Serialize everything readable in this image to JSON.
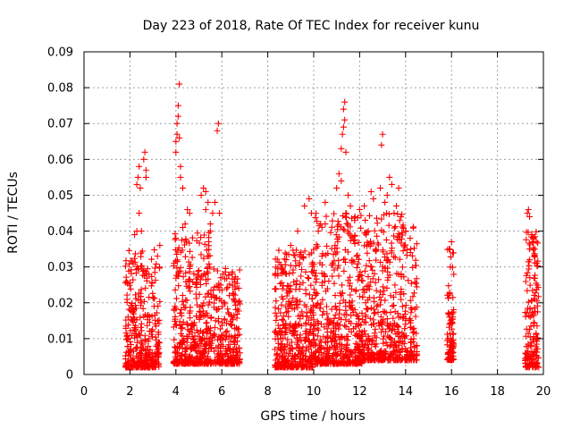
{
  "chart_data": {
    "type": "scatter",
    "title": "Day 223 of 2018, Rate Of TEC Index for receiver kunu",
    "xlabel": "GPS time / hours",
    "ylabel": "ROTI / TECUs",
    "xlim": [
      0,
      20
    ],
    "ylim": [
      0,
      0.09
    ],
    "x_ticks": [
      "0",
      "2",
      "4",
      "6",
      "8",
      "10",
      "12",
      "14",
      "16",
      "18",
      "20"
    ],
    "y_ticks": [
      "0",
      "0.01",
      "0.02",
      "0.03",
      "0.04",
      "0.05",
      "0.06",
      "0.07",
      "0.08",
      "0.09"
    ],
    "grid": true,
    "marker": "+",
    "color": "#ff0000",
    "clusters": [
      {
        "x_range": [
          1.8,
          3.3
        ],
        "y_range": [
          0.002,
          0.035
        ],
        "count": 380,
        "skew": 2.6
      },
      {
        "x_range": [
          3.9,
          5.5
        ],
        "y_range": [
          0.003,
          0.04
        ],
        "count": 400,
        "skew": 2.4
      },
      {
        "x_range": [
          5.5,
          6.8
        ],
        "y_range": [
          0.003,
          0.03
        ],
        "count": 250,
        "skew": 2.5
      },
      {
        "x_range": [
          8.3,
          10.0
        ],
        "y_range": [
          0.002,
          0.035
        ],
        "count": 420,
        "skew": 2.4
      },
      {
        "x_range": [
          10.0,
          12.1
        ],
        "y_range": [
          0.003,
          0.045
        ],
        "count": 500,
        "skew": 2.5
      },
      {
        "x_range": [
          12.1,
          14.5
        ],
        "y_range": [
          0.004,
          0.045
        ],
        "count": 500,
        "skew": 2.4
      },
      {
        "x_range": [
          15.8,
          16.1
        ],
        "y_range": [
          0.004,
          0.035
        ],
        "count": 90,
        "skew": 2.2
      },
      {
        "x_range": [
          19.2,
          19.8
        ],
        "y_range": [
          0.002,
          0.04
        ],
        "count": 160,
        "skew": 2.3
      }
    ],
    "points": [
      [
        2.3,
        0.053
      ],
      [
        2.35,
        0.055
      ],
      [
        2.4,
        0.058
      ],
      [
        2.4,
        0.045
      ],
      [
        2.45,
        0.052
      ],
      [
        2.6,
        0.06
      ],
      [
        2.65,
        0.062
      ],
      [
        2.7,
        0.057
      ],
      [
        2.7,
        0.055
      ],
      [
        2.5,
        0.04
      ],
      [
        2.2,
        0.039
      ],
      [
        2.3,
        0.04
      ],
      [
        3.2,
        0.033
      ],
      [
        3.3,
        0.036
      ],
      [
        4.0,
        0.062
      ],
      [
        4.0,
        0.065
      ],
      [
        4.05,
        0.067
      ],
      [
        4.05,
        0.07
      ],
      [
        4.1,
        0.072
      ],
      [
        4.1,
        0.075
      ],
      [
        4.15,
        0.081
      ],
      [
        4.15,
        0.066
      ],
      [
        4.2,
        0.058
      ],
      [
        4.2,
        0.055
      ],
      [
        4.3,
        0.052
      ],
      [
        4.4,
        0.042
      ],
      [
        4.3,
        0.041
      ],
      [
        4.0,
        0.038
      ],
      [
        5.1,
        0.05
      ],
      [
        5.2,
        0.052
      ],
      [
        5.3,
        0.051
      ],
      [
        5.4,
        0.048
      ],
      [
        5.3,
        0.046
      ],
      [
        5.5,
        0.042
      ],
      [
        5.8,
        0.068
      ],
      [
        5.85,
        0.07
      ],
      [
        5.9,
        0.045
      ],
      [
        5.7,
        0.048
      ],
      [
        5.6,
        0.045
      ],
      [
        5.5,
        0.04
      ],
      [
        4.5,
        0.046
      ],
      [
        4.6,
        0.045
      ],
      [
        9.6,
        0.047
      ],
      [
        9.8,
        0.049
      ],
      [
        9.9,
        0.045
      ],
      [
        10.2,
        0.04
      ],
      [
        10.3,
        0.042
      ],
      [
        10.5,
        0.042
      ],
      [
        10.5,
        0.048
      ],
      [
        11.0,
        0.052
      ],
      [
        11.1,
        0.056
      ],
      [
        11.2,
        0.054
      ],
      [
        11.2,
        0.063
      ],
      [
        11.25,
        0.067
      ],
      [
        11.3,
        0.069
      ],
      [
        11.35,
        0.071
      ],
      [
        11.3,
        0.074
      ],
      [
        11.35,
        0.076
      ],
      [
        11.4,
        0.062
      ],
      [
        11.5,
        0.05
      ],
      [
        11.4,
        0.045
      ],
      [
        11.6,
        0.047
      ],
      [
        11.8,
        0.044
      ],
      [
        12.0,
        0.046
      ],
      [
        12.2,
        0.047
      ],
      [
        12.5,
        0.051
      ],
      [
        12.6,
        0.049
      ],
      [
        12.9,
        0.052
      ],
      [
        12.95,
        0.064
      ],
      [
        13.0,
        0.067
      ],
      [
        13.1,
        0.048
      ],
      [
        13.2,
        0.05
      ],
      [
        13.3,
        0.055
      ],
      [
        13.4,
        0.053
      ],
      [
        13.5,
        0.045
      ],
      [
        13.6,
        0.047
      ],
      [
        13.7,
        0.052
      ],
      [
        13.8,
        0.044
      ],
      [
        14.0,
        0.04
      ],
      [
        14.2,
        0.038
      ],
      [
        9.3,
        0.04
      ],
      [
        9.0,
        0.036
      ],
      [
        15.9,
        0.035
      ],
      [
        16.0,
        0.037
      ],
      [
        15.95,
        0.03
      ],
      [
        19.3,
        0.045
      ],
      [
        19.35,
        0.046
      ],
      [
        19.4,
        0.044
      ],
      [
        19.5,
        0.039
      ],
      [
        19.55,
        0.038
      ],
      [
        19.6,
        0.033
      ],
      [
        19.7,
        0.031
      ]
    ]
  }
}
